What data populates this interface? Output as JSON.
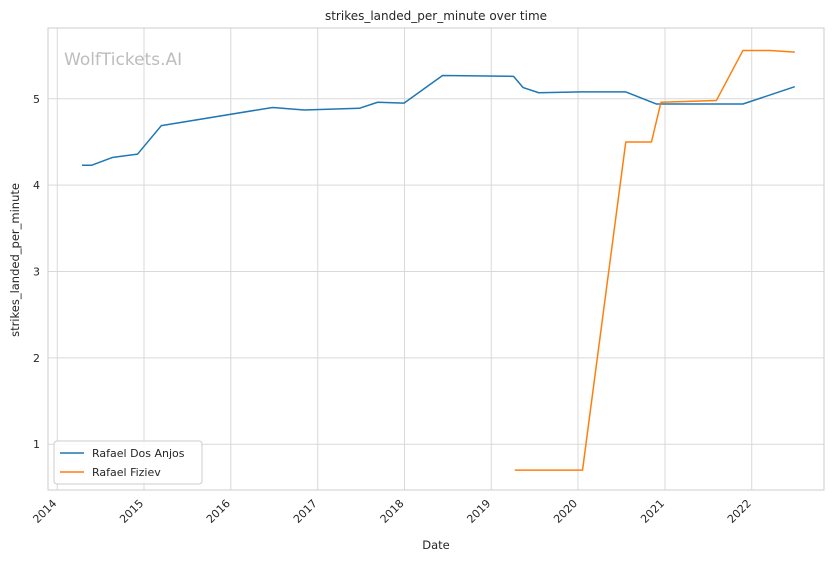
{
  "chart_data": {
    "type": "line",
    "title": "strikes_landed_per_minute over time",
    "xlabel": "Date",
    "ylabel": "strikes_landed_per_minute",
    "x_type": "date",
    "xlim": [
      "2013-11-23",
      "2022-11-01"
    ],
    "ylim": [
      0.47,
      5.82
    ],
    "x_ticks": [
      "2014",
      "2015",
      "2016",
      "2017",
      "2018",
      "2019",
      "2020",
      "2021",
      "2022"
    ],
    "y_ticks": [
      1,
      2,
      3,
      4,
      5
    ],
    "grid": true,
    "legend_position": "lower-left",
    "watermark": "WolfTickets.AI",
    "series": [
      {
        "name": "Rafael Dos Anjos",
        "color": "#1f77b4",
        "points": [
          [
            "2014-04-15",
            4.23
          ],
          [
            "2014-05-25",
            4.23
          ],
          [
            "2014-08-20",
            4.32
          ],
          [
            "2014-12-05",
            4.36
          ],
          [
            "2015-03-15",
            4.69
          ],
          [
            "2016-06-25",
            4.9
          ],
          [
            "2016-11-05",
            4.87
          ],
          [
            "2017-06-25",
            4.89
          ],
          [
            "2017-09-10",
            4.96
          ],
          [
            "2017-12-30",
            4.95
          ],
          [
            "2018-06-10",
            5.27
          ],
          [
            "2019-04-05",
            5.26
          ],
          [
            "2019-05-15",
            5.13
          ],
          [
            "2019-07-20",
            5.07
          ],
          [
            "2020-01-15",
            5.08
          ],
          [
            "2020-07-20",
            5.08
          ],
          [
            "2020-11-25",
            4.94
          ],
          [
            "2021-11-25",
            4.94
          ],
          [
            "2022-07-01",
            5.14
          ]
        ]
      },
      {
        "name": "Rafael Fiziev",
        "color": "#ff7f0e",
        "points": [
          [
            "2019-04-10",
            0.7
          ],
          [
            "2020-01-20",
            0.7
          ],
          [
            "2020-07-20",
            4.5
          ],
          [
            "2020-11-05",
            4.5
          ],
          [
            "2020-12-15",
            4.96
          ],
          [
            "2021-08-05",
            4.98
          ],
          [
            "2021-11-25",
            5.56
          ],
          [
            "2022-03-20",
            5.56
          ],
          [
            "2022-07-01",
            5.54
          ]
        ]
      }
    ]
  }
}
